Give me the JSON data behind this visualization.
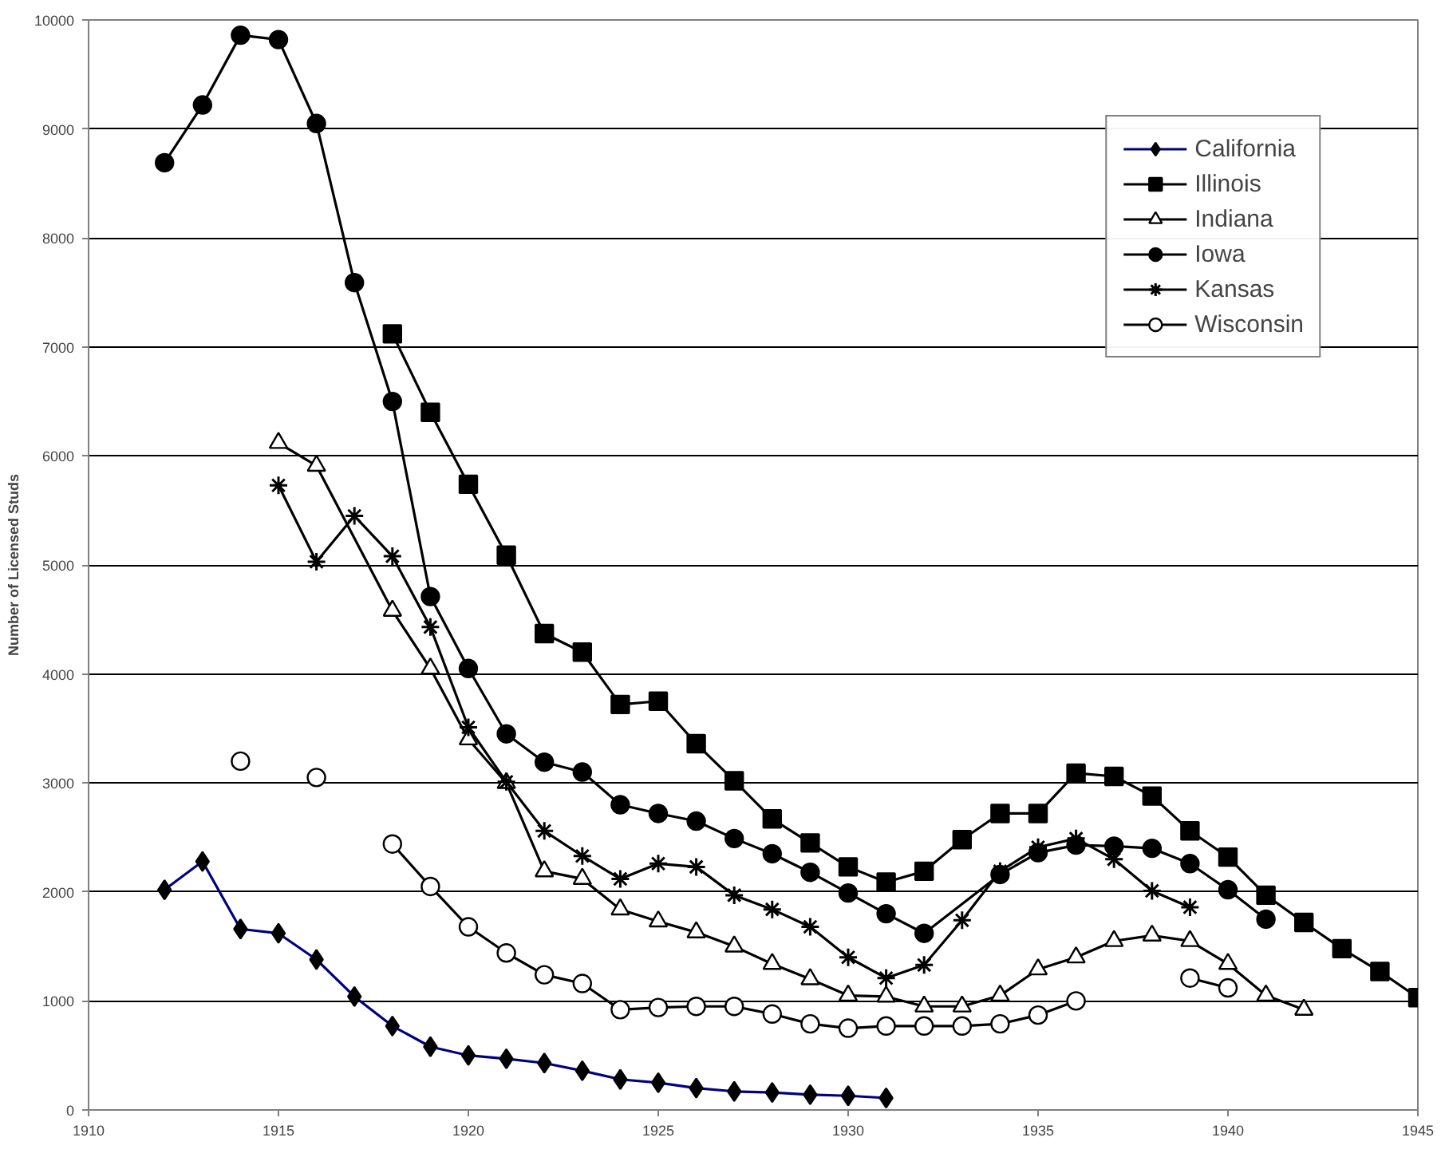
{
  "chart_data": {
    "type": "line",
    "ylabel": "Number of Licensed Studs",
    "xlim": [
      1910,
      1945
    ],
    "xticks": [
      1910,
      1915,
      1920,
      1925,
      1930,
      1935,
      1940,
      1945
    ],
    "ylim": [
      0,
      10000
    ],
    "yticks": [
      0,
      1000,
      2000,
      3000,
      4000,
      5000,
      6000,
      7000,
      8000,
      9000,
      10000
    ],
    "grid": "y",
    "legend": "top right",
    "line_style": "solid",
    "series": [
      {
        "name": "California",
        "color": "#000080",
        "marker": "diamond",
        "x": [
          1912,
          1913,
          1914,
          1915,
          1916,
          1917,
          1918,
          1919,
          1920,
          1921,
          1922,
          1923,
          1924,
          1925,
          1926,
          1927,
          1928,
          1929,
          1930,
          1931
        ],
        "values": [
          2020,
          2280,
          1660,
          1620,
          1380,
          1040,
          770,
          580,
          500,
          470,
          430,
          360,
          280,
          250,
          200,
          170,
          160,
          140,
          130,
          110
        ]
      },
      {
        "name": "Illinois",
        "color": "#000000",
        "marker": "square",
        "x": [
          1918,
          1919,
          1920,
          1921,
          1922,
          1923,
          1924,
          1925,
          1926,
          1927,
          1928,
          1929,
          1930,
          1931,
          1932,
          1933,
          1934,
          1935,
          1936,
          1937,
          1938,
          1939,
          1940,
          1941,
          1942,
          1943,
          1944,
          1945
        ],
        "values": [
          7120,
          6400,
          5740,
          5090,
          4370,
          4200,
          3720,
          3750,
          3360,
          3020,
          2670,
          2450,
          2230,
          2090,
          2190,
          2480,
          2720,
          2720,
          3090,
          3060,
          2880,
          2560,
          2320,
          1970,
          1720,
          1480,
          1270,
          1030
        ]
      },
      {
        "name": "Indiana",
        "color": "#000000",
        "marker": "triangle",
        "x": [
          1915,
          1916,
          1918,
          1919,
          1920,
          1921,
          1922,
          1923,
          1924,
          1925,
          1926,
          1927,
          1928,
          1929,
          1930,
          1931,
          1932,
          1933,
          1934,
          1935,
          1936,
          1937,
          1938,
          1939,
          1940,
          1941,
          1942
        ],
        "values": [
          6120,
          5910,
          4580,
          4050,
          3400,
          3000,
          2190,
          2120,
          1840,
          1730,
          1630,
          1500,
          1340,
          1200,
          1050,
          1040,
          950,
          950,
          1050,
          1290,
          1400,
          1550,
          1600,
          1550,
          1340,
          1050,
          920
        ]
      },
      {
        "name": "Iowa",
        "color": "#000000",
        "marker": "circle",
        "x": [
          1912,
          1913,
          1914,
          1915,
          1916,
          1917,
          1918,
          1919,
          1920,
          1921,
          1922,
          1923,
          1924,
          1925,
          1926,
          1927,
          1928,
          1929,
          1930,
          1931,
          1932,
          1934,
          1935,
          1936,
          1937,
          1938,
          1939,
          1940,
          1941
        ],
        "values": [
          8690,
          9220,
          9860,
          9820,
          9050,
          7590,
          6500,
          4710,
          4050,
          3450,
          3190,
          3100,
          2800,
          2720,
          2650,
          2490,
          2350,
          2180,
          1990,
          1800,
          1620,
          2160,
          2360,
          2430,
          2420,
          2400,
          2260,
          2020,
          1750
        ]
      },
      {
        "name": "Kansas",
        "color": "#000000",
        "marker": "cross",
        "x": [
          1915,
          1916,
          1917,
          1918,
          1919,
          1920,
          1921,
          1922,
          1923,
          1924,
          1925,
          1926,
          1927,
          1928,
          1929,
          1930,
          1931,
          1932,
          1933,
          1934,
          1935,
          1936,
          1937,
          1938,
          1939
        ],
        "values": [
          5730,
          5030,
          5450,
          5080,
          4430,
          3510,
          3010,
          2560,
          2330,
          2120,
          2260,
          2230,
          1970,
          1840,
          1680,
          1400,
          1210,
          1330,
          1740,
          2190,
          2410,
          2490,
          2300,
          2010,
          1860
        ]
      },
      {
        "name": "Wisconsin",
        "color": "#000000",
        "marker": "circle",
        "x": [
          1914,
          1915,
          1916,
          1917,
          1918,
          1919,
          1920,
          1921,
          1922,
          1923,
          1924,
          1925,
          1926,
          1927,
          1928,
          1929,
          1930,
          1931,
          1932,
          1933,
          1934,
          1935,
          1936,
          1937,
          1938,
          1939,
          1940
        ],
        "values": [
          3200,
          null,
          3050,
          null,
          2440,
          2050,
          1680,
          1440,
          1240,
          1160,
          920,
          940,
          950,
          950,
          880,
          790,
          750,
          770,
          770,
          770,
          790,
          870,
          1000,
          null,
          null,
          1210,
          1120
        ]
      }
    ]
  }
}
